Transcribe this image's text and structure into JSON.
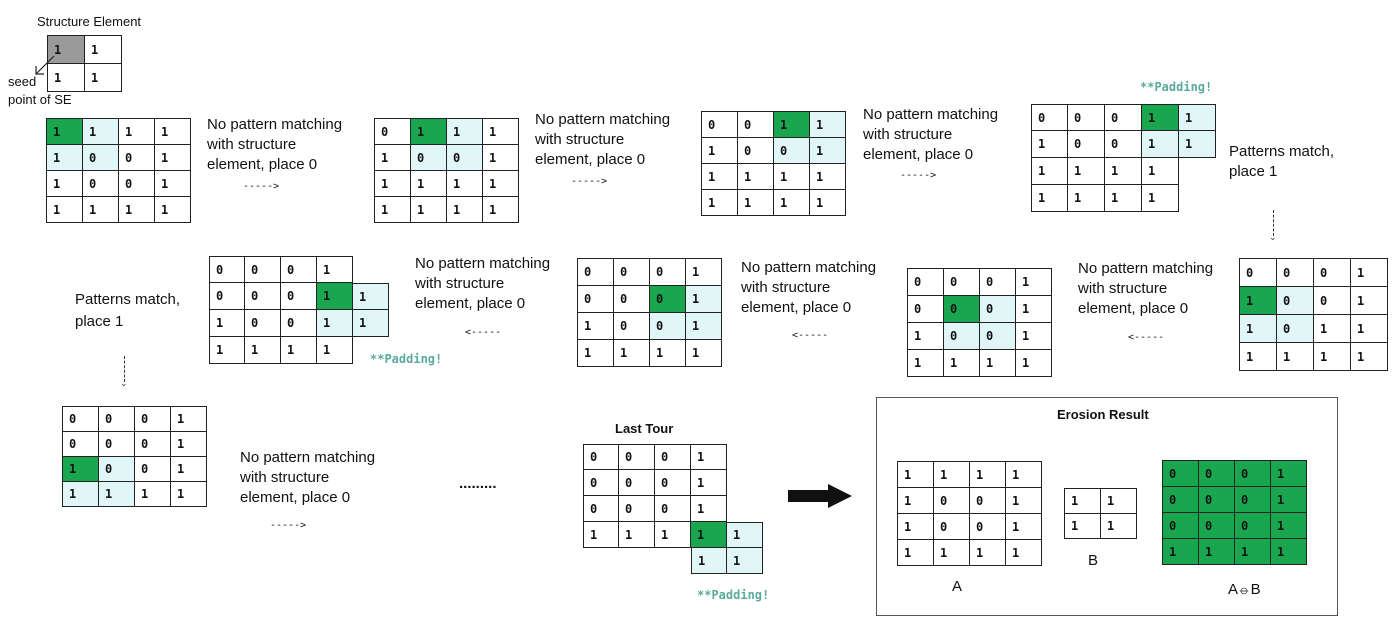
{
  "structure_element": {
    "title": "Structure Element",
    "seed_label_1": "seed",
    "seed_label_2": "point of SE",
    "grid": [
      [
        {
          "v": "1",
          "c": "gray"
        },
        {
          "v": "1",
          "c": "white"
        }
      ],
      [
        {
          "v": "1",
          "c": "white"
        },
        {
          "v": "1",
          "c": "white"
        }
      ]
    ]
  },
  "steps": [
    {
      "id": "s1",
      "label": [
        "No pattern matching",
        "with structure",
        "element, place 0"
      ],
      "arrow": "----->",
      "grid": [
        [
          {
            "v": "1",
            "c": "green"
          },
          {
            "v": "1",
            "c": "light"
          },
          {
            "v": "1",
            "c": "white"
          },
          {
            "v": "1",
            "c": "white"
          }
        ],
        [
          {
            "v": "1",
            "c": "light"
          },
          {
            "v": "0",
            "c": "light"
          },
          {
            "v": "0",
            "c": "white"
          },
          {
            "v": "1",
            "c": "white"
          }
        ],
        [
          {
            "v": "1",
            "c": "white"
          },
          {
            "v": "0",
            "c": "white"
          },
          {
            "v": "0",
            "c": "white"
          },
          {
            "v": "1",
            "c": "white"
          }
        ],
        [
          {
            "v": "1",
            "c": "white"
          },
          {
            "v": "1",
            "c": "white"
          },
          {
            "v": "1",
            "c": "white"
          },
          {
            "v": "1",
            "c": "white"
          }
        ]
      ]
    },
    {
      "id": "s2",
      "label": [
        "No pattern matching",
        "with structure",
        "element, place 0"
      ],
      "arrow": "----->",
      "grid": [
        [
          {
            "v": "0",
            "c": "white"
          },
          {
            "v": "1",
            "c": "green"
          },
          {
            "v": "1",
            "c": "light"
          },
          {
            "v": "1",
            "c": "white"
          }
        ],
        [
          {
            "v": "1",
            "c": "white"
          },
          {
            "v": "0",
            "c": "light"
          },
          {
            "v": "0",
            "c": "light"
          },
          {
            "v": "1",
            "c": "white"
          }
        ],
        [
          {
            "v": "1",
            "c": "white"
          },
          {
            "v": "1",
            "c": "white"
          },
          {
            "v": "1",
            "c": "white"
          },
          {
            "v": "1",
            "c": "white"
          }
        ],
        [
          {
            "v": "1",
            "c": "white"
          },
          {
            "v": "1",
            "c": "white"
          },
          {
            "v": "1",
            "c": "white"
          },
          {
            "v": "1",
            "c": "white"
          }
        ]
      ]
    },
    {
      "id": "s3",
      "label": [
        "No pattern matching",
        "with structure",
        "element, place 0"
      ],
      "arrow": "----->",
      "grid": [
        [
          {
            "v": "0",
            "c": "white"
          },
          {
            "v": "0",
            "c": "white"
          },
          {
            "v": "1",
            "c": "green"
          },
          {
            "v": "1",
            "c": "light"
          }
        ],
        [
          {
            "v": "1",
            "c": "white"
          },
          {
            "v": "0",
            "c": "white"
          },
          {
            "v": "0",
            "c": "light"
          },
          {
            "v": "1",
            "c": "light"
          }
        ],
        [
          {
            "v": "1",
            "c": "white"
          },
          {
            "v": "1",
            "c": "white"
          },
          {
            "v": "1",
            "c": "white"
          },
          {
            "v": "1",
            "c": "white"
          }
        ],
        [
          {
            "v": "1",
            "c": "white"
          },
          {
            "v": "1",
            "c": "white"
          },
          {
            "v": "1",
            "c": "white"
          },
          {
            "v": "1",
            "c": "white"
          }
        ]
      ]
    },
    {
      "id": "s4",
      "label": [
        "Patterns match,",
        "place 1"
      ],
      "padding": "**Padding!",
      "grid": [
        [
          {
            "v": "0",
            "c": "white"
          },
          {
            "v": "0",
            "c": "white"
          },
          {
            "v": "0",
            "c": "white"
          },
          {
            "v": "1",
            "c": "green"
          },
          {
            "v": "1",
            "c": "light"
          }
        ],
        [
          {
            "v": "1",
            "c": "white"
          },
          {
            "v": "0",
            "c": "white"
          },
          {
            "v": "0",
            "c": "white"
          },
          {
            "v": "1",
            "c": "light"
          },
          {
            "v": "1",
            "c": "light"
          }
        ],
        [
          {
            "v": "1",
            "c": "white"
          },
          {
            "v": "1",
            "c": "white"
          },
          {
            "v": "1",
            "c": "white"
          },
          {
            "v": "1",
            "c": "white"
          },
          {
            "v": "",
            "c": "blank"
          }
        ],
        [
          {
            "v": "1",
            "c": "white"
          },
          {
            "v": "1",
            "c": "white"
          },
          {
            "v": "1",
            "c": "white"
          },
          {
            "v": "1",
            "c": "white"
          },
          {
            "v": "",
            "c": "blank"
          }
        ]
      ]
    },
    {
      "id": "s5",
      "label": [
        "No pattern matching",
        "with structure",
        "element, place 0"
      ],
      "arrow": "<-----",
      "grid": [
        [
          {
            "v": "0",
            "c": "white"
          },
          {
            "v": "0",
            "c": "white"
          },
          {
            "v": "0",
            "c": "white"
          },
          {
            "v": "1",
            "c": "white"
          }
        ],
        [
          {
            "v": "1",
            "c": "green"
          },
          {
            "v": "0",
            "c": "light"
          },
          {
            "v": "0",
            "c": "white"
          },
          {
            "v": "1",
            "c": "white"
          }
        ],
        [
          {
            "v": "1",
            "c": "light"
          },
          {
            "v": "0",
            "c": "light"
          },
          {
            "v": "1",
            "c": "white"
          },
          {
            "v": "1",
            "c": "white"
          }
        ],
        [
          {
            "v": "1",
            "c": "white"
          },
          {
            "v": "1",
            "c": "white"
          },
          {
            "v": "1",
            "c": "white"
          },
          {
            "v": "1",
            "c": "white"
          }
        ]
      ]
    },
    {
      "id": "s6",
      "label": [
        "No pattern matching",
        "with structure",
        "element, place 0"
      ],
      "arrow": "<-----",
      "grid": [
        [
          {
            "v": "0",
            "c": "white"
          },
          {
            "v": "0",
            "c": "white"
          },
          {
            "v": "0",
            "c": "white"
          },
          {
            "v": "1",
            "c": "white"
          }
        ],
        [
          {
            "v": "0",
            "c": "white"
          },
          {
            "v": "0",
            "c": "green"
          },
          {
            "v": "0",
            "c": "light"
          },
          {
            "v": "1",
            "c": "white"
          }
        ],
        [
          {
            "v": "1",
            "c": "white"
          },
          {
            "v": "0",
            "c": "light"
          },
          {
            "v": "0",
            "c": "light"
          },
          {
            "v": "1",
            "c": "white"
          }
        ],
        [
          {
            "v": "1",
            "c": "white"
          },
          {
            "v": "1",
            "c": "white"
          },
          {
            "v": "1",
            "c": "white"
          },
          {
            "v": "1",
            "c": "white"
          }
        ]
      ]
    },
    {
      "id": "s7",
      "label": [
        "No pattern matching",
        "with structure",
        "element, place 0"
      ],
      "arrow": "<-----",
      "grid": [
        [
          {
            "v": "0",
            "c": "white"
          },
          {
            "v": "0",
            "c": "white"
          },
          {
            "v": "0",
            "c": "white"
          },
          {
            "v": "1",
            "c": "white"
          }
        ],
        [
          {
            "v": "0",
            "c": "white"
          },
          {
            "v": "0",
            "c": "white"
          },
          {
            "v": "0",
            "c": "green"
          },
          {
            "v": "1",
            "c": "light"
          }
        ],
        [
          {
            "v": "1",
            "c": "white"
          },
          {
            "v": "0",
            "c": "white"
          },
          {
            "v": "0",
            "c": "light"
          },
          {
            "v": "1",
            "c": "light"
          }
        ],
        [
          {
            "v": "1",
            "c": "white"
          },
          {
            "v": "1",
            "c": "white"
          },
          {
            "v": "1",
            "c": "white"
          },
          {
            "v": "1",
            "c": "white"
          }
        ]
      ]
    },
    {
      "id": "s8",
      "label": [
        "Patterns match,",
        "place 1"
      ],
      "padding": "**Padding!",
      "grid": [
        [
          {
            "v": "0",
            "c": "white"
          },
          {
            "v": "0",
            "c": "white"
          },
          {
            "v": "0",
            "c": "white"
          },
          {
            "v": "1",
            "c": "white"
          },
          {
            "v": "",
            "c": "blank"
          }
        ],
        [
          {
            "v": "0",
            "c": "white"
          },
          {
            "v": "0",
            "c": "white"
          },
          {
            "v": "0",
            "c": "white"
          },
          {
            "v": "1",
            "c": "green"
          },
          {
            "v": "1",
            "c": "light"
          }
        ],
        [
          {
            "v": "1",
            "c": "white"
          },
          {
            "v": "0",
            "c": "white"
          },
          {
            "v": "0",
            "c": "white"
          },
          {
            "v": "1",
            "c": "light"
          },
          {
            "v": "1",
            "c": "light"
          }
        ],
        [
          {
            "v": "1",
            "c": "white"
          },
          {
            "v": "1",
            "c": "white"
          },
          {
            "v": "1",
            "c": "white"
          },
          {
            "v": "1",
            "c": "white"
          },
          {
            "v": "",
            "c": "blank"
          }
        ]
      ]
    },
    {
      "id": "s9",
      "label": [
        "No pattern matching",
        "with structure",
        "element, place 0"
      ],
      "arrow": "----->",
      "grid": [
        [
          {
            "v": "0",
            "c": "white"
          },
          {
            "v": "0",
            "c": "white"
          },
          {
            "v": "0",
            "c": "white"
          },
          {
            "v": "1",
            "c": "white"
          }
        ],
        [
          {
            "v": "0",
            "c": "white"
          },
          {
            "v": "0",
            "c": "white"
          },
          {
            "v": "0",
            "c": "white"
          },
          {
            "v": "1",
            "c": "white"
          }
        ],
        [
          {
            "v": "1",
            "c": "green"
          },
          {
            "v": "0",
            "c": "light"
          },
          {
            "v": "0",
            "c": "white"
          },
          {
            "v": "1",
            "c": "white"
          }
        ],
        [
          {
            "v": "1",
            "c": "light"
          },
          {
            "v": "1",
            "c": "light"
          },
          {
            "v": "1",
            "c": "white"
          },
          {
            "v": "1",
            "c": "white"
          }
        ]
      ]
    }
  ],
  "ellipsis": ".........",
  "last_tour": {
    "title": "Last Tour",
    "padding": "**Padding!",
    "grid": [
      [
        {
          "v": "0",
          "c": "white"
        },
        {
          "v": "0",
          "c": "white"
        },
        {
          "v": "0",
          "c": "white"
        },
        {
          "v": "1",
          "c": "white"
        },
        {
          "v": "",
          "c": "blank"
        }
      ],
      [
        {
          "v": "0",
          "c": "white"
        },
        {
          "v": "0",
          "c": "white"
        },
        {
          "v": "0",
          "c": "white"
        },
        {
          "v": "1",
          "c": "white"
        },
        {
          "v": "",
          "c": "blank"
        }
      ],
      [
        {
          "v": "0",
          "c": "white"
        },
        {
          "v": "0",
          "c": "white"
        },
        {
          "v": "0",
          "c": "white"
        },
        {
          "v": "1",
          "c": "white"
        },
        {
          "v": "",
          "c": "blank"
        }
      ],
      [
        {
          "v": "1",
          "c": "white"
        },
        {
          "v": "1",
          "c": "white"
        },
        {
          "v": "1",
          "c": "white"
        },
        {
          "v": "1",
          "c": "green"
        },
        {
          "v": "1",
          "c": "light"
        }
      ],
      [
        {
          "v": "",
          "c": "blank"
        },
        {
          "v": "",
          "c": "blank"
        },
        {
          "v": "",
          "c": "blank"
        },
        {
          "v": "1",
          "c": "light"
        },
        {
          "v": "1",
          "c": "light"
        }
      ]
    ]
  },
  "result": {
    "title": "Erosion Result",
    "a_label": "A",
    "b_label": "B",
    "ab_label": "A⦵B",
    "a_grid": [
      [
        {
          "v": "1",
          "c": "white"
        },
        {
          "v": "1",
          "c": "white"
        },
        {
          "v": "1",
          "c": "white"
        },
        {
          "v": "1",
          "c": "white"
        }
      ],
      [
        {
          "v": "1",
          "c": "white"
        },
        {
          "v": "0",
          "c": "white"
        },
        {
          "v": "0",
          "c": "white"
        },
        {
          "v": "1",
          "c": "white"
        }
      ],
      [
        {
          "v": "1",
          "c": "white"
        },
        {
          "v": "0",
          "c": "white"
        },
        {
          "v": "0",
          "c": "white"
        },
        {
          "v": "1",
          "c": "white"
        }
      ],
      [
        {
          "v": "1",
          "c": "white"
        },
        {
          "v": "1",
          "c": "white"
        },
        {
          "v": "1",
          "c": "white"
        },
        {
          "v": "1",
          "c": "white"
        }
      ]
    ],
    "b_grid": [
      [
        {
          "v": "1",
          "c": "white"
        },
        {
          "v": "1",
          "c": "white"
        }
      ],
      [
        {
          "v": "1",
          "c": "white"
        },
        {
          "v": "1",
          "c": "white"
        }
      ]
    ],
    "ab_grid": [
      [
        {
          "v": "0",
          "c": "green"
        },
        {
          "v": "0",
          "c": "green"
        },
        {
          "v": "0",
          "c": "green"
        },
        {
          "v": "1",
          "c": "green"
        }
      ],
      [
        {
          "v": "0",
          "c": "green"
        },
        {
          "v": "0",
          "c": "green"
        },
        {
          "v": "0",
          "c": "green"
        },
        {
          "v": "1",
          "c": "green"
        }
      ],
      [
        {
          "v": "0",
          "c": "green"
        },
        {
          "v": "0",
          "c": "green"
        },
        {
          "v": "0",
          "c": "green"
        },
        {
          "v": "1",
          "c": "green"
        }
      ],
      [
        {
          "v": "1",
          "c": "green"
        },
        {
          "v": "1",
          "c": "green"
        },
        {
          "v": "1",
          "c": "green"
        },
        {
          "v": "1",
          "c": "green"
        }
      ]
    ]
  },
  "colors": {
    "green": "#1aa64f",
    "light": "#e1f7f7",
    "gray": "#9a9a9a",
    "padding_text": "#5aab9a"
  }
}
